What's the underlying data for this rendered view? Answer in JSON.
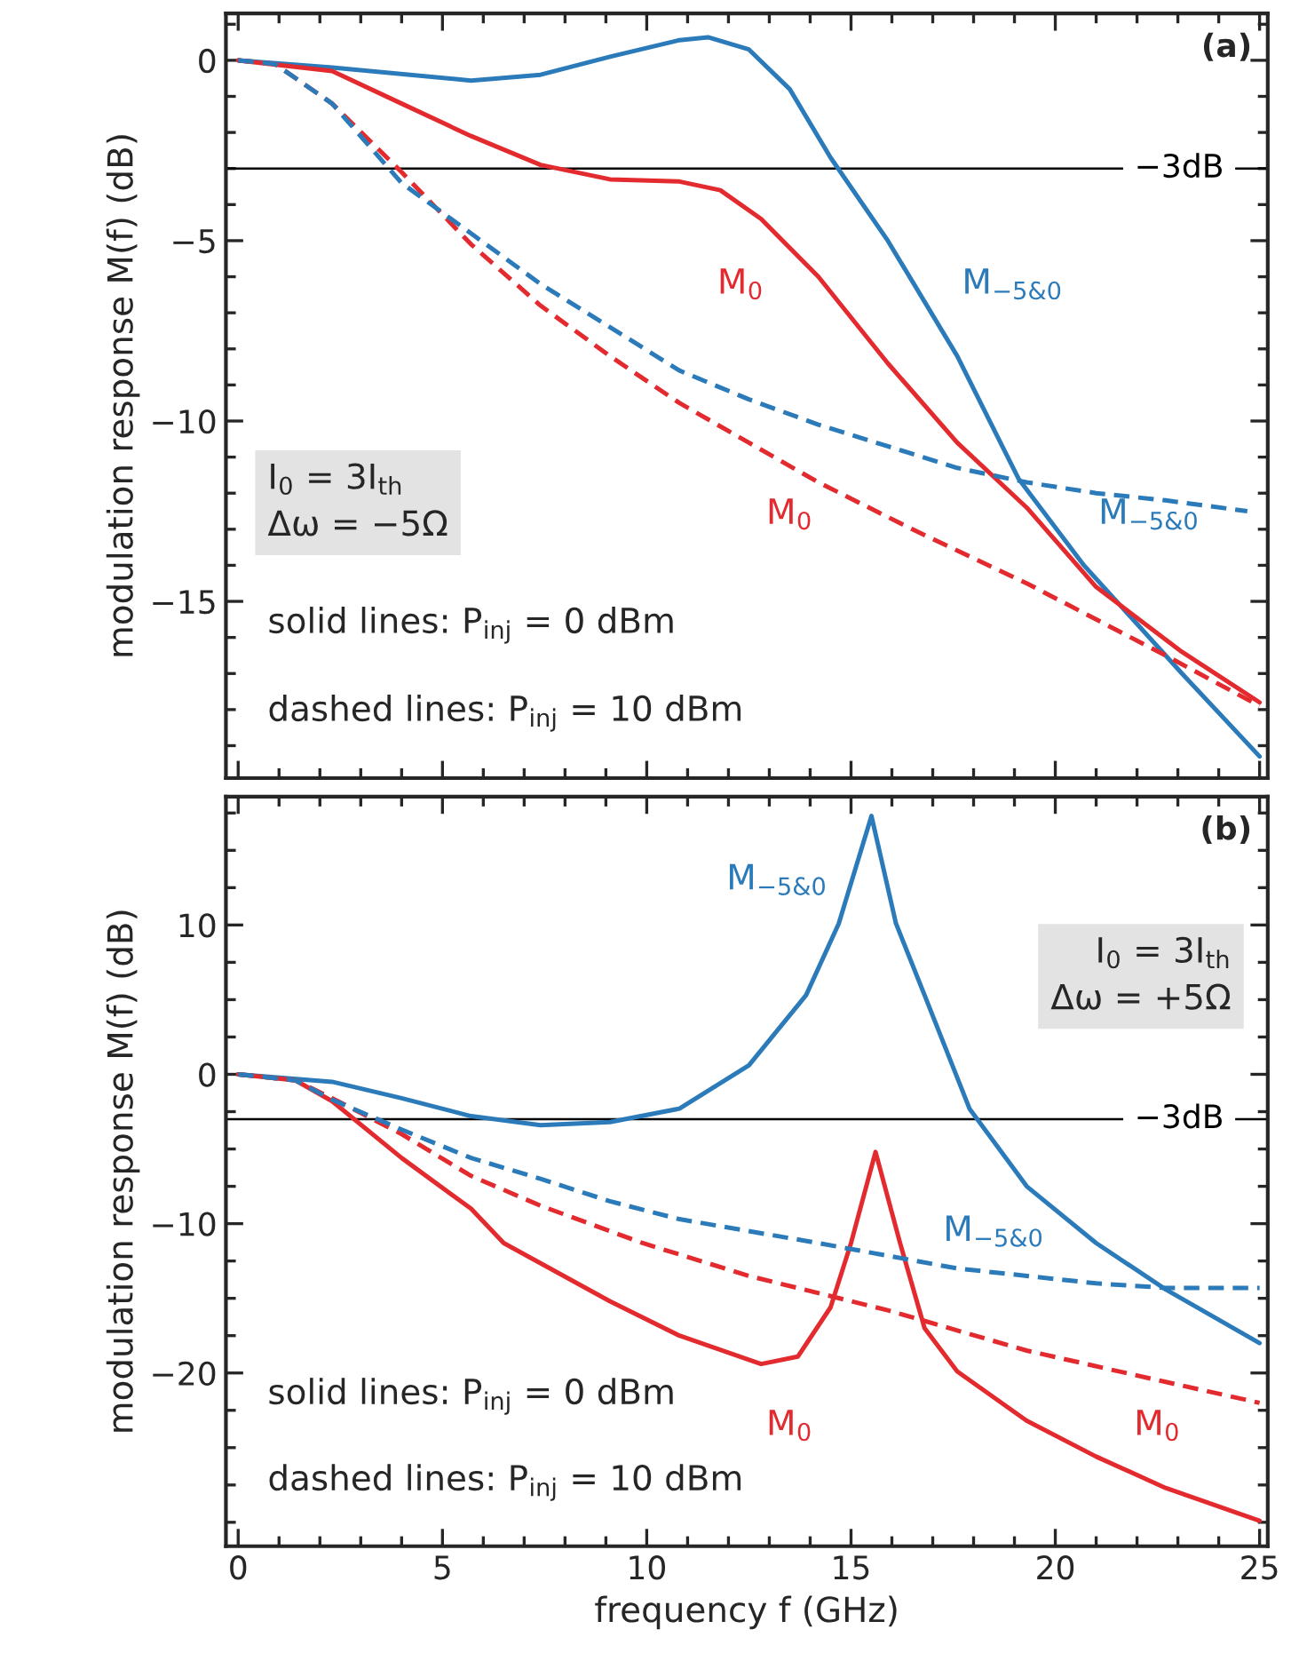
{
  "chart_data": [
    {
      "type": "line",
      "title": "(a)",
      "ylabel": "modulation response M(f) (dB)",
      "xlim": [
        -0.3,
        25.2
      ],
      "ylim": [
        -19.9,
        1.3
      ],
      "xticks": [
        0,
        {
          "value": 1,
          "label": null
        },
        {
          "value": 2,
          "label": null
        },
        {
          "value": 3,
          "label": null
        },
        {
          "value": 4,
          "label": null
        },
        5,
        {
          "value": 6,
          "label": null
        },
        {
          "value": 7,
          "label": null
        },
        {
          "value": 8,
          "label": null
        },
        {
          "value": 9,
          "label": null
        },
        10,
        {
          "value": 11,
          "label": null
        },
        {
          "value": 12,
          "label": null
        },
        {
          "value": 13,
          "label": null
        },
        {
          "value": 14,
          "label": null
        },
        15,
        {
          "value": 16,
          "label": null
        },
        {
          "value": 17,
          "label": null
        },
        {
          "value": 18,
          "label": null
        },
        {
          "value": 19,
          "label": null
        },
        20,
        {
          "value": 21,
          "label": null
        },
        {
          "value": 22,
          "label": null
        },
        {
          "value": 23,
          "label": null
        },
        {
          "value": 24,
          "label": null
        },
        25
      ],
      "yticks": [
        {
          "value": -19,
          "label": null
        },
        {
          "value": -18,
          "label": null
        },
        {
          "value": -17,
          "label": null
        },
        {
          "value": -16,
          "label": null
        },
        {
          "value": -15,
          "label": "−15"
        },
        {
          "value": -14,
          "label": null
        },
        {
          "value": -13,
          "label": null
        },
        {
          "value": -12,
          "label": null
        },
        {
          "value": -11,
          "label": null
        },
        {
          "value": -10,
          "label": "−10"
        },
        {
          "value": -9,
          "label": null
        },
        {
          "value": -8,
          "label": null
        },
        {
          "value": -7,
          "label": null
        },
        {
          "value": -6,
          "label": null
        },
        {
          "value": -5,
          "label": "−5"
        },
        {
          "value": -4,
          "label": null
        },
        {
          "value": -3,
          "label": null
        },
        {
          "value": -2,
          "label": null
        },
        {
          "value": -1,
          "label": null
        },
        0,
        {
          "value": 1,
          "label": null
        }
      ],
      "tick_labels": "y",
      "grid": false,
      "legend": false,
      "series": [
        {
          "name": "M$_{−5&0}$",
          "color": "#2b7bba",
          "line_style": "solid",
          "x": [
            0,
            2.3,
            5.7,
            7.4,
            9.1,
            10.8,
            11.5,
            12.5,
            13.5,
            14.5,
            15.9,
            17.6,
            19.1,
            20.7,
            23.1,
            25
          ],
          "values": [
            0,
            -0.2,
            -0.56,
            -0.4,
            0.1,
            0.56,
            0.64,
            0.3,
            -0.8,
            -2.7,
            -5,
            -8.2,
            -11.6,
            -14,
            -17,
            -19.3
          ]
        },
        {
          "name": "M$_{0}$",
          "color": "#e32b2f",
          "line_style": "solid",
          "x": [
            0,
            2.3,
            4,
            5.7,
            7.4,
            9.1,
            10.8,
            11.8,
            12.8,
            14.2,
            15.9,
            17.6,
            19.3,
            21,
            23.1,
            25
          ],
          "values": [
            0,
            -0.3,
            -1.2,
            -2.1,
            -2.9,
            -3.3,
            -3.36,
            -3.6,
            -4.4,
            -6,
            -8.4,
            -10.6,
            -12.4,
            -14.6,
            -16.4,
            -17.8
          ]
        },
        {
          "name": "M$_{−5&0}$",
          "color": "#2b7bba",
          "line_style": "dashed",
          "x": [
            0,
            0.9,
            2.3,
            4,
            5.7,
            7.4,
            9.1,
            10.8,
            12.5,
            14.2,
            15.9,
            17.6,
            19.3,
            21,
            22.7,
            24.7
          ],
          "values": [
            0,
            -0.1,
            -1.2,
            -3.4,
            -4.8,
            -6.2,
            -7.4,
            -8.6,
            -9.4,
            -10.1,
            -10.7,
            -11.3,
            -11.7,
            -12,
            -12.2,
            -12.5
          ]
        },
        {
          "name": "M$_{0}$",
          "color": "#e32b2f",
          "line_style": "dashed",
          "x": [
            0,
            0.9,
            2.3,
            4,
            5.7,
            7.4,
            9.1,
            10.8,
            12.5,
            14.2,
            16.5,
            19.3,
            22.7,
            25
          ],
          "values": [
            0,
            -0.1,
            -1.2,
            -3.1,
            -5.1,
            -6.8,
            -8.2,
            -9.5,
            -10.6,
            -11.7,
            -13,
            -14.5,
            -16.5,
            -17.9
          ]
        }
      ],
      "ref_lines": [
        {
          "axis": "y",
          "value": -3,
          "label": "−3dB",
          "color": "#000000"
        }
      ],
      "annotations": [
        "I$_{0}$ = 3I$_{th}$\nΔω = −5Ω",
        "solid lines: P$_{inj}$ = 0 dBm",
        "dashed lines: P$_{inj}$ = 10 dBm"
      ]
    },
    {
      "type": "line",
      "title": "(b)",
      "ylabel": "modulation response M(f) (dB)",
      "xlabel": "frequency f (GHz)",
      "xlim": [
        -0.3,
        25.2
      ],
      "ylim": [
        -31.6,
        18.6
      ],
      "xticks": [
        0,
        {
          "value": 1,
          "label": null
        },
        {
          "value": 2,
          "label": null
        },
        {
          "value": 3,
          "label": null
        },
        {
          "value": 4,
          "label": null
        },
        5,
        {
          "value": 6,
          "label": null
        },
        {
          "value": 7,
          "label": null
        },
        {
          "value": 8,
          "label": null
        },
        {
          "value": 9,
          "label": null
        },
        10,
        {
          "value": 11,
          "label": null
        },
        {
          "value": 12,
          "label": null
        },
        {
          "value": 13,
          "label": null
        },
        {
          "value": 14,
          "label": null
        },
        15,
        {
          "value": 16,
          "label": null
        },
        {
          "value": 17,
          "label": null
        },
        {
          "value": 18,
          "label": null
        },
        {
          "value": 19,
          "label": null
        },
        20,
        {
          "value": 21,
          "label": null
        },
        {
          "value": 22,
          "label": null
        },
        {
          "value": 23,
          "label": null
        },
        {
          "value": 24,
          "label": null
        },
        25
      ],
      "yticks": [
        {
          "value": -30,
          "label": null
        },
        {
          "value": -27.5,
          "label": null
        },
        {
          "value": -25,
          "label": null
        },
        {
          "value": -22.5,
          "label": null
        },
        {
          "value": -20,
          "label": "−20"
        },
        {
          "value": -17.5,
          "label": null
        },
        {
          "value": -15,
          "label": null
        },
        {
          "value": -12.5,
          "label": null
        },
        {
          "value": -10,
          "label": "−10"
        },
        {
          "value": -7.5,
          "label": null
        },
        {
          "value": -5,
          "label": null
        },
        {
          "value": -2.5,
          "label": null
        },
        0,
        {
          "value": 2.5,
          "label": null
        },
        {
          "value": 5,
          "label": null
        },
        {
          "value": 7.5,
          "label": null
        },
        10,
        {
          "value": 12.5,
          "label": null
        },
        {
          "value": 15,
          "label": null
        },
        {
          "value": 17.5,
          "label": null
        }
      ],
      "grid": false,
      "legend": false,
      "series": [
        {
          "name": "M$_{−5&0}$",
          "color": "#2b7bba",
          "line_style": "solid",
          "x": [
            0,
            2.3,
            4,
            5.7,
            7.4,
            9.1,
            10.8,
            12.5,
            13.9,
            14.7,
            15.5,
            16.1,
            16.8,
            17.9,
            19.3,
            21,
            22.7,
            25
          ],
          "values": [
            0,
            -0.5,
            -1.6,
            -2.8,
            -3.4,
            -3.2,
            -2.3,
            0.6,
            5.3,
            10.1,
            17.3,
            10.1,
            5.3,
            -2.3,
            -7.5,
            -11.3,
            -14.4,
            -18
          ]
        },
        {
          "name": "M$_{0}$",
          "color": "#e32b2f",
          "line_style": "solid",
          "x": [
            0,
            1.4,
            2.3,
            4,
            5.7,
            6.5,
            9.1,
            10.8,
            12.8,
            13.7,
            14.5,
            15,
            15.6,
            16.2,
            16.8,
            17.6,
            19.3,
            21,
            22.7,
            25
          ],
          "values": [
            0,
            -0.4,
            -1.8,
            -5.6,
            -9,
            -11.3,
            -15.2,
            -17.5,
            -19.4,
            -18.9,
            -15.6,
            -11.3,
            -5.2,
            -11.3,
            -17,
            -19.9,
            -23.2,
            -25.6,
            -27.7,
            -29.9
          ]
        },
        {
          "name": "M$_{−5&0}$",
          "color": "#2b7bba",
          "line_style": "dashed",
          "x": [
            0,
            1.4,
            2.3,
            4,
            5.7,
            7.4,
            9.1,
            10.8,
            14.2,
            17.6,
            21,
            22.7,
            25
          ],
          "values": [
            0,
            -0.4,
            -1.7,
            -3.7,
            -5.6,
            -7,
            -8.5,
            -9.7,
            -11.3,
            -13,
            -14,
            -14.3,
            -14.3
          ]
        },
        {
          "name": "M$_{0}$",
          "color": "#e32b2f",
          "line_style": "dashed",
          "x": [
            0,
            1.4,
            2.3,
            4,
            5.7,
            7.4,
            9.1,
            9.9,
            12.5,
            15.9,
            19.3,
            22.7,
            25
          ],
          "values": [
            0,
            -0.4,
            -1.6,
            -4,
            -6.8,
            -8.8,
            -10.5,
            -11.3,
            -13.5,
            -15.8,
            -18.5,
            -20.6,
            -22
          ]
        }
      ],
      "ref_lines": [
        {
          "axis": "y",
          "value": -3,
          "label": "−3dB",
          "color": "#000000"
        }
      ],
      "annotations": [
        "I$_{0}$ = 3I$_{th}$\nΔω = +5Ω",
        "solid lines: P$_{inj}$ = 0 dBm",
        "dashed lines: P$_{inj}$ = 10 dBm"
      ]
    }
  ]
}
